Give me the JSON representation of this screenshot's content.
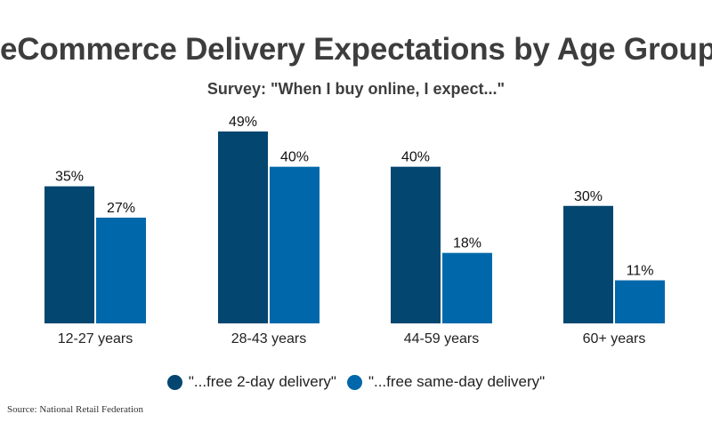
{
  "chart_data": {
    "type": "bar",
    "title": "eCommerce Delivery Expectations by Age Group",
    "subtitle": "Survey: \"When I buy online, I expect...\"",
    "categories": [
      "12-27 years",
      "28-43 years",
      "44-59 years",
      "60+ years"
    ],
    "series": [
      {
        "name": "\"...free 2-day delivery\"",
        "color": "#03466f",
        "values": [
          35,
          49,
          40,
          30
        ],
        "labels": [
          "35%",
          "49%",
          "40%",
          "30%"
        ]
      },
      {
        "name": "\"...free same-day delivery\"",
        "color": "#0068aa",
        "values": [
          27,
          40,
          18,
          11
        ],
        "labels": [
          "27%",
          "40%",
          "18%",
          "11%"
        ]
      }
    ],
    "ylim": [
      0,
      49
    ],
    "xlabel": "",
    "ylabel": "",
    "grid": false,
    "legend": "bottom-center"
  },
  "source": "Source: National Retail Federation"
}
